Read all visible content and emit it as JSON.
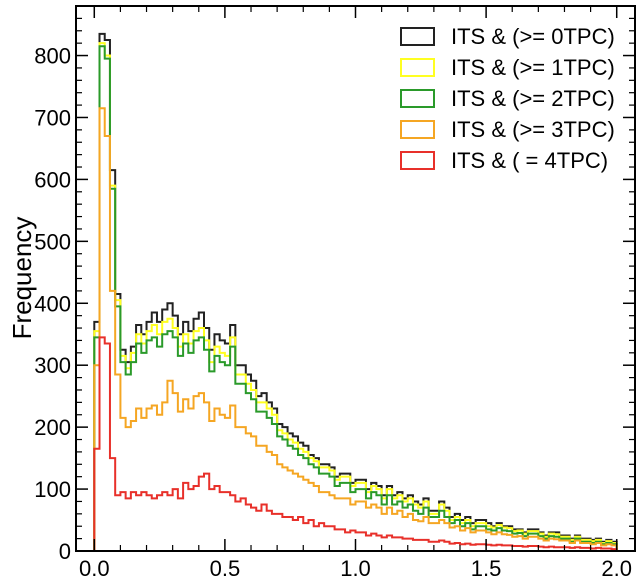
{
  "chart_data": {
    "type": "histogram-step",
    "ylabel": "Frequency",
    "xlabel": "",
    "xlim": [
      -0.07,
      2.07
    ],
    "ylim": [
      0,
      880
    ],
    "xticks": [
      0.0,
      0.5,
      1.0,
      1.5,
      2.0
    ],
    "xtick_labels": [
      "0.0",
      "0.5",
      "1.0",
      "1.5",
      "2.0"
    ],
    "yticks": [
      0,
      100,
      200,
      300,
      400,
      500,
      600,
      700,
      800
    ],
    "ytick_labels": [
      "0",
      "100",
      "200",
      "300",
      "400",
      "500",
      "600",
      "700",
      "800"
    ],
    "bin_start": 0.0,
    "bin_width": 0.02,
    "legend_position": "top-right",
    "series": [
      {
        "name": "ITS & (>= 0TPC)",
        "color": "#222222",
        "values": [
          370,
          835,
          825,
          615,
          415,
          325,
          305,
          330,
          365,
          350,
          370,
          385,
          370,
          390,
          400,
          380,
          350,
          370,
          355,
          375,
          385,
          360,
          325,
          350,
          340,
          335,
          365,
          300,
          300,
          285,
          275,
          250,
          255,
          240,
          230,
          205,
          200,
          190,
          185,
          175,
          170,
          155,
          150,
          140,
          140,
          135,
          120,
          125,
          125,
          110,
          115,
          115,
          100,
          110,
          105,
          90,
          105,
          90,
          95,
          85,
          90,
          80,
          75,
          85,
          65,
          65,
          80,
          70,
          55,
          60,
          50,
          55,
          45,
          50,
          50,
          45,
          40,
          45,
          40,
          40,
          35,
          35,
          30,
          35,
          35,
          30,
          25,
          30,
          30,
          25,
          25,
          20,
          25,
          20,
          20,
          18,
          20,
          15,
          18,
          15
        ]
      },
      {
        "name": "ITS & (>= 1TPC)",
        "color": "#ffff22",
        "values": [
          355,
          820,
          800,
          590,
          405,
          315,
          295,
          320,
          350,
          335,
          355,
          365,
          350,
          370,
          375,
          360,
          330,
          350,
          335,
          355,
          360,
          340,
          305,
          330,
          320,
          315,
          345,
          285,
          285,
          270,
          260,
          240,
          240,
          230,
          220,
          195,
          190,
          180,
          175,
          165,
          160,
          150,
          145,
          135,
          135,
          130,
          115,
          120,
          120,
          105,
          110,
          110,
          95,
          105,
          100,
          85,
          100,
          85,
          90,
          80,
          85,
          75,
          70,
          80,
          60,
          60,
          75,
          65,
          50,
          55,
          45,
          50,
          40,
          45,
          45,
          40,
          38,
          42,
          38,
          37,
          32,
          33,
          28,
          32,
          32,
          28,
          23,
          28,
          27,
          23,
          23,
          18,
          23,
          18,
          18,
          16,
          18,
          13,
          16,
          13
        ]
      },
      {
        "name": "ITS & (>= 2TPC)",
        "color": "#2a9a2a",
        "values": [
          345,
          815,
          795,
          585,
          395,
          305,
          285,
          305,
          335,
          320,
          340,
          345,
          330,
          350,
          355,
          345,
          315,
          335,
          320,
          340,
          345,
          325,
          290,
          315,
          305,
          300,
          330,
          270,
          270,
          255,
          245,
          225,
          225,
          215,
          205,
          185,
          180,
          170,
          165,
          155,
          150,
          140,
          135,
          125,
          125,
          120,
          105,
          110,
          110,
          95,
          100,
          100,
          85,
          95,
          90,
          75,
          90,
          75,
          80,
          70,
          75,
          65,
          60,
          70,
          55,
          55,
          65,
          55,
          45,
          50,
          40,
          45,
          35,
          40,
          40,
          35,
          33,
          37,
          33,
          32,
          28,
          29,
          24,
          28,
          28,
          24,
          20,
          24,
          23,
          20,
          20,
          15,
          20,
          15,
          15,
          13,
          15,
          11,
          13,
          11
        ]
      },
      {
        "name": "ITS & (>= 3TPC)",
        "color": "#f5a623",
        "values": [
          300,
          715,
          670,
          420,
          285,
          215,
          200,
          210,
          230,
          215,
          230,
          235,
          220,
          240,
          275,
          255,
          225,
          245,
          230,
          250,
          255,
          240,
          210,
          230,
          220,
          215,
          235,
          200,
          200,
          190,
          185,
          170,
          170,
          160,
          155,
          140,
          135,
          130,
          125,
          120,
          115,
          110,
          105,
          95,
          95,
          90,
          85,
          85,
          85,
          75,
          80,
          80,
          70,
          75,
          70,
          60,
          70,
          60,
          65,
          55,
          60,
          50,
          48,
          55,
          45,
          45,
          50,
          45,
          38,
          40,
          33,
          37,
          30,
          33,
          33,
          30,
          27,
          30,
          27,
          26,
          23,
          24,
          20,
          23,
          23,
          20,
          17,
          20,
          19,
          17,
          17,
          13,
          17,
          13,
          13,
          11,
          13,
          9,
          11,
          9
        ]
      },
      {
        "name": "ITS & ( =  4TPC)",
        "color": "#e8302a",
        "values": [
          165,
          345,
          335,
          150,
          90,
          95,
          85,
          95,
          90,
          95,
          90,
          85,
          90,
          95,
          90,
          100,
          85,
          110,
          100,
          105,
          120,
          125,
          100,
          105,
          95,
          95,
          90,
          80,
          85,
          75,
          70,
          65,
          75,
          65,
          60,
          60,
          55,
          55,
          50,
          55,
          45,
          50,
          40,
          45,
          40,
          40,
          35,
          35,
          30,
          33,
          30,
          30,
          25,
          28,
          25,
          22,
          25,
          22,
          22,
          20,
          20,
          18,
          18,
          18,
          15,
          15,
          17,
          15,
          12,
          13,
          11,
          12,
          10,
          11,
          11,
          10,
          9,
          10,
          9,
          9,
          8,
          8,
          7,
          8,
          8,
          7,
          6,
          7,
          6,
          6,
          6,
          5,
          6,
          5,
          5,
          4,
          5,
          4,
          4,
          3
        ]
      }
    ]
  }
}
